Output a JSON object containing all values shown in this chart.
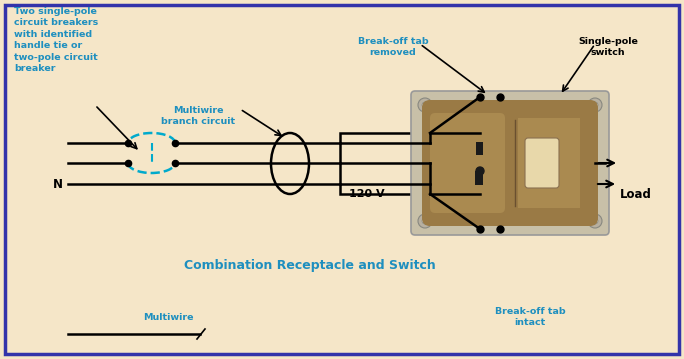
{
  "bg_color": "#F5E6C8",
  "border_color": "#3333AA",
  "teal": "#1E8FBF",
  "dark": "#000000",
  "brown": "#8B6914",
  "plate_color": "#C8C0A8",
  "body_color": "#9A7A45",
  "figw": 6.84,
  "figh": 3.59,
  "dpi": 100,
  "labels": {
    "top_left": "Two single-pole\ncircuit breakers\nwith identified\nhandle tie or\ntwo-pole circuit\nbreaker",
    "multiwire": "Multiwire\nbranch circuit",
    "breakoff_removed": "Break-off tab\nremoved",
    "singlepole": "Single-pole\nswitch",
    "combination": "Combination Receptacle and Switch",
    "N": "N",
    "120V": "120 V",
    "Load": "Load",
    "multiwire2": "Multiwire",
    "breakoff_intact": "Break-off tab\nintact"
  }
}
